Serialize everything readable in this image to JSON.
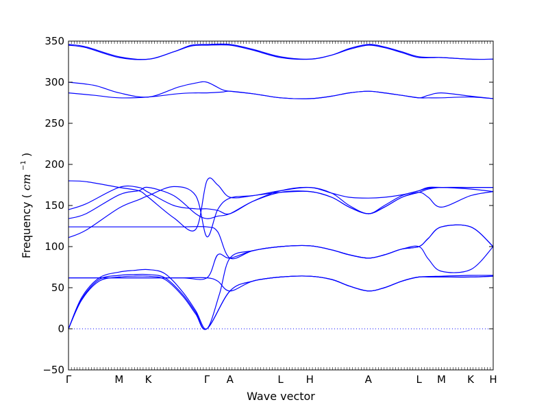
{
  "chart_data": {
    "type": "line",
    "xlabel": "Wave vector",
    "ylabel_text": "Frequency (",
    "ylabel_unit": "cm",
    "ylabel_exp": "−1",
    "ylabel_close": ")",
    "ylim": [
      -50,
      350
    ],
    "yticks": [
      -50,
      0,
      50,
      100,
      150,
      200,
      250,
      300,
      350
    ],
    "path_labels": [
      "Γ",
      "M",
      "K",
      "Γ",
      "A",
      "L",
      "H",
      "A",
      "L",
      "M",
      "K",
      "H"
    ],
    "path_positions": [
      0,
      0.577,
      0.91,
      1.577,
      1.84,
      2.417,
      2.75,
      3.417,
      3.994,
      4.25,
      4.583,
      4.84
    ],
    "xlim": [
      0,
      4.84
    ],
    "zero_line": 0,
    "series": [
      {
        "x": [
          0,
          0.15,
          0.35,
          0.577,
          0.74,
          0.91,
          1.1,
          1.3,
          1.45,
          1.577,
          1.84,
          2.1,
          2.417,
          2.75,
          3.0,
          3.2,
          3.417,
          3.6,
          3.8,
          3.994,
          4.25,
          4.583,
          4.84
        ],
        "y": [
          0,
          35,
          58,
          63,
          64,
          64,
          60,
          40,
          18,
          0,
          46,
          58,
          63,
          64,
          60,
          52,
          46,
          50,
          58,
          63,
          63,
          63,
          64
        ]
      },
      {
        "x": [
          0,
          0.15,
          0.35,
          0.577,
          0.74,
          0.91,
          1.1,
          1.3,
          1.45,
          1.577,
          1.84,
          2.1,
          2.417,
          2.75,
          3.0,
          3.2,
          3.417,
          3.6,
          3.8,
          3.994,
          4.25,
          4.583,
          4.84
        ],
        "y": [
          0,
          36,
          60,
          65,
          66,
          66,
          62,
          42,
          20,
          0,
          46,
          58,
          63,
          64,
          60,
          52,
          46,
          50,
          58,
          63,
          64,
          65,
          65
        ]
      },
      {
        "x": [
          0,
          0.15,
          0.35,
          0.577,
          0.74,
          0.91,
          1.1,
          1.3,
          1.45,
          1.577,
          1.72,
          1.84,
          2.1,
          2.417,
          2.75,
          3.0,
          3.2,
          3.417,
          3.6,
          3.8,
          3.994,
          4.1,
          4.25,
          4.583,
          4.84
        ],
        "y": [
          0,
          38,
          62,
          69,
          71,
          72,
          67,
          45,
          22,
          0,
          42,
          86,
          95,
          100,
          101,
          96,
          90,
          86,
          90,
          97,
          100,
          85,
          70,
          72,
          100
        ]
      },
      {
        "x": [
          0,
          0.3,
          0.577,
          0.91,
          1.3,
          1.577,
          1.7,
          1.84,
          2.1,
          2.417,
          2.75,
          3.0,
          3.2,
          3.417,
          3.6,
          3.8,
          3.994,
          4.1,
          4.25,
          4.583,
          4.84
        ],
        "y": [
          62,
          62,
          62,
          62,
          62,
          62,
          58,
          46,
          58,
          63,
          64,
          60,
          52,
          46,
          50,
          58,
          63,
          63,
          63,
          63,
          64
        ]
      },
      {
        "x": [
          0,
          0.3,
          0.577,
          0.91,
          1.3,
          1.577,
          1.7,
          1.84,
          2.1,
          2.417,
          2.75,
          3.0,
          3.2,
          3.417,
          3.6,
          3.8,
          3.994,
          4.1,
          4.25,
          4.583,
          4.84
        ],
        "y": [
          62,
          62,
          62,
          62,
          62,
          62,
          90,
          86,
          95,
          100,
          101,
          96,
          90,
          86,
          90,
          97,
          100,
          110,
          124,
          124,
          100
        ]
      },
      {
        "x": [
          0,
          0.3,
          0.577,
          0.91,
          1.3,
          1.577,
          1.7,
          1.84,
          2.1,
          2.417,
          2.75,
          3.0,
          3.2,
          3.417,
          3.6,
          3.8,
          3.994,
          4.1,
          4.25,
          4.583,
          4.84
        ],
        "y": [
          124,
          124,
          124,
          124,
          124,
          124,
          118,
          86,
          95,
          100,
          101,
          96,
          90,
          86,
          90,
          97,
          100,
          110,
          124,
          124,
          100
        ]
      },
      {
        "x": [
          0,
          0.2,
          0.577,
          0.8,
          0.91,
          1.2,
          1.45,
          1.577,
          1.7,
          1.84,
          2.1,
          2.417,
          2.75,
          3.0,
          3.2,
          3.417,
          3.6,
          3.8,
          3.994,
          4.1,
          4.25,
          4.583,
          4.84
        ],
        "y": [
          111,
          120,
          147,
          157,
          162,
          173,
          162,
          112,
          145,
          159,
          162,
          166,
          167,
          160,
          148,
          140,
          148,
          160,
          166,
          160,
          148,
          162,
          167
        ]
      },
      {
        "x": [
          0,
          0.2,
          0.577,
          0.8,
          0.91,
          1.2,
          1.45,
          1.577,
          1.7,
          1.84,
          2.1,
          2.417,
          2.75,
          3.0,
          3.2,
          3.417,
          3.6,
          3.8,
          3.994,
          4.1,
          4.25,
          4.583,
          4.84
        ],
        "y": [
          134,
          140,
          163,
          168,
          172,
          162,
          140,
          134,
          137,
          140,
          155,
          166,
          167,
          160,
          148,
          140,
          148,
          160,
          166,
          170,
          172,
          172,
          172
        ]
      },
      {
        "x": [
          0,
          0.2,
          0.577,
          0.8,
          0.91,
          1.2,
          1.45,
          1.577,
          1.7,
          1.84,
          2.1,
          2.417,
          2.75,
          3.0,
          3.2,
          3.417,
          3.6,
          3.8,
          3.994,
          4.1,
          4.25,
          4.583,
          4.84
        ],
        "y": [
          145,
          152,
          172,
          172,
          166,
          150,
          146,
          146,
          144,
          140,
          155,
          168,
          172,
          165,
          150,
          140,
          150,
          162,
          168,
          172,
          172,
          172,
          172
        ]
      },
      {
        "x": [
          0,
          0.2,
          0.577,
          0.8,
          0.91,
          1.2,
          1.45,
          1.577,
          1.7,
          1.84,
          2.1,
          2.417,
          2.75,
          3.0,
          3.2,
          3.417,
          3.6,
          3.8,
          3.994,
          4.1,
          4.25,
          4.583,
          4.84
        ],
        "y": [
          180,
          179,
          172,
          168,
          160,
          135,
          121,
          180,
          175,
          160,
          162,
          168,
          172,
          165,
          160,
          159,
          160,
          163,
          168,
          171,
          172,
          170,
          167
        ]
      },
      {
        "x": [
          0,
          0.3,
          0.577,
          0.91,
          1.25,
          1.45,
          1.577,
          1.75,
          1.84,
          2.1,
          2.417,
          2.75,
          3.0,
          3.2,
          3.417,
          3.6,
          3.8,
          3.994,
          4.1,
          4.25,
          4.583,
          4.84
        ],
        "y": [
          287,
          284,
          281,
          282,
          286,
          287,
          287,
          288,
          289,
          286,
          281,
          280,
          283,
          287,
          289,
          287,
          284,
          281,
          281,
          281,
          282,
          280
        ]
      },
      {
        "x": [
          0,
          0.3,
          0.577,
          0.91,
          1.25,
          1.45,
          1.577,
          1.75,
          1.84,
          2.1,
          2.417,
          2.75,
          3.0,
          3.2,
          3.417,
          3.6,
          3.8,
          3.994,
          4.1,
          4.25,
          4.583,
          4.84
        ],
        "y": [
          300,
          296,
          287,
          282,
          294,
          299,
          300,
          291,
          289,
          286,
          281,
          280,
          283,
          287,
          289,
          287,
          284,
          281,
          284,
          287,
          283,
          280
        ]
      },
      {
        "x": [
          0,
          0.2,
          0.577,
          0.91,
          1.2,
          1.4,
          1.577,
          1.84,
          2.1,
          2.417,
          2.75,
          3.0,
          3.2,
          3.417,
          3.6,
          3.8,
          3.994,
          4.25,
          4.583,
          4.84
        ],
        "y": [
          346,
          343,
          331,
          328,
          337,
          345,
          346,
          346,
          340,
          331,
          328,
          333,
          341,
          346,
          343,
          337,
          331,
          330,
          328,
          328
        ]
      },
      {
        "x": [
          0,
          0.2,
          0.577,
          0.91,
          1.2,
          1.4,
          1.577,
          1.84,
          2.1,
          2.417,
          2.75,
          3.0,
          3.2,
          3.417,
          3.6,
          3.8,
          3.994,
          4.25,
          4.583,
          4.84
        ],
        "y": [
          345,
          342,
          330,
          328,
          337,
          344,
          345,
          345,
          339,
          330,
          328,
          333,
          340,
          345,
          342,
          336,
          330,
          330,
          328,
          328
        ]
      }
    ]
  }
}
